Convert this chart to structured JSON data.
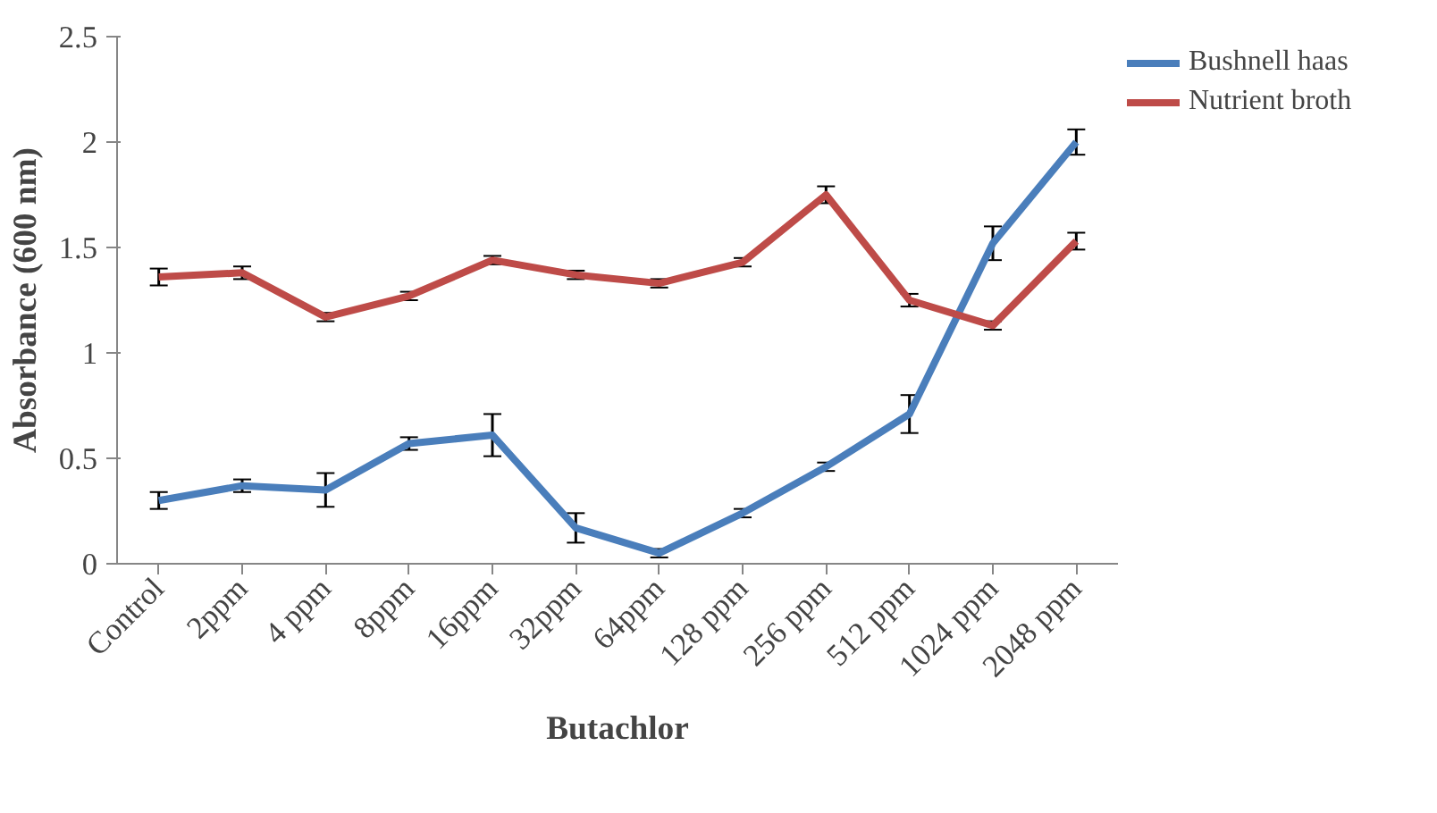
{
  "chart_data": {
    "type": "line",
    "xlabel": "Butachlor",
    "ylabel": "Absorbance (600 nm)",
    "categories": [
      "Control",
      "2ppm",
      "4 ppm",
      "8ppm",
      "16ppm",
      "32ppm",
      "64ppm",
      "128 ppm",
      "256 ppm",
      "512 ppm",
      "1024 ppm",
      "2048 ppm"
    ],
    "ylim": [
      0,
      2.5
    ],
    "yticks": [
      0,
      0.5,
      1,
      1.5,
      2,
      2.5
    ],
    "grid": false,
    "legend": "top right",
    "marker": "none",
    "line_style": "solid",
    "series": [
      {
        "name": "Bushnell haas",
        "color": "#4a7ebb",
        "values": [
          0.3,
          0.37,
          0.35,
          0.57,
          0.61,
          0.17,
          0.05,
          0.24,
          0.46,
          0.71,
          1.52,
          2.0
        ],
        "errors": [
          0.04,
          0.03,
          0.08,
          0.03,
          0.1,
          0.07,
          0.02,
          0.02,
          0.02,
          0.09,
          0.08,
          0.06
        ]
      },
      {
        "name": "Nutrient broth",
        "color": "#be4b48",
        "values": [
          1.36,
          1.38,
          1.17,
          1.27,
          1.44,
          1.37,
          1.33,
          1.43,
          1.75,
          1.25,
          1.13,
          1.53
        ],
        "errors": [
          0.04,
          0.03,
          0.02,
          0.02,
          0.02,
          0.02,
          0.02,
          0.02,
          0.04,
          0.03,
          0.02,
          0.04
        ]
      }
    ]
  }
}
